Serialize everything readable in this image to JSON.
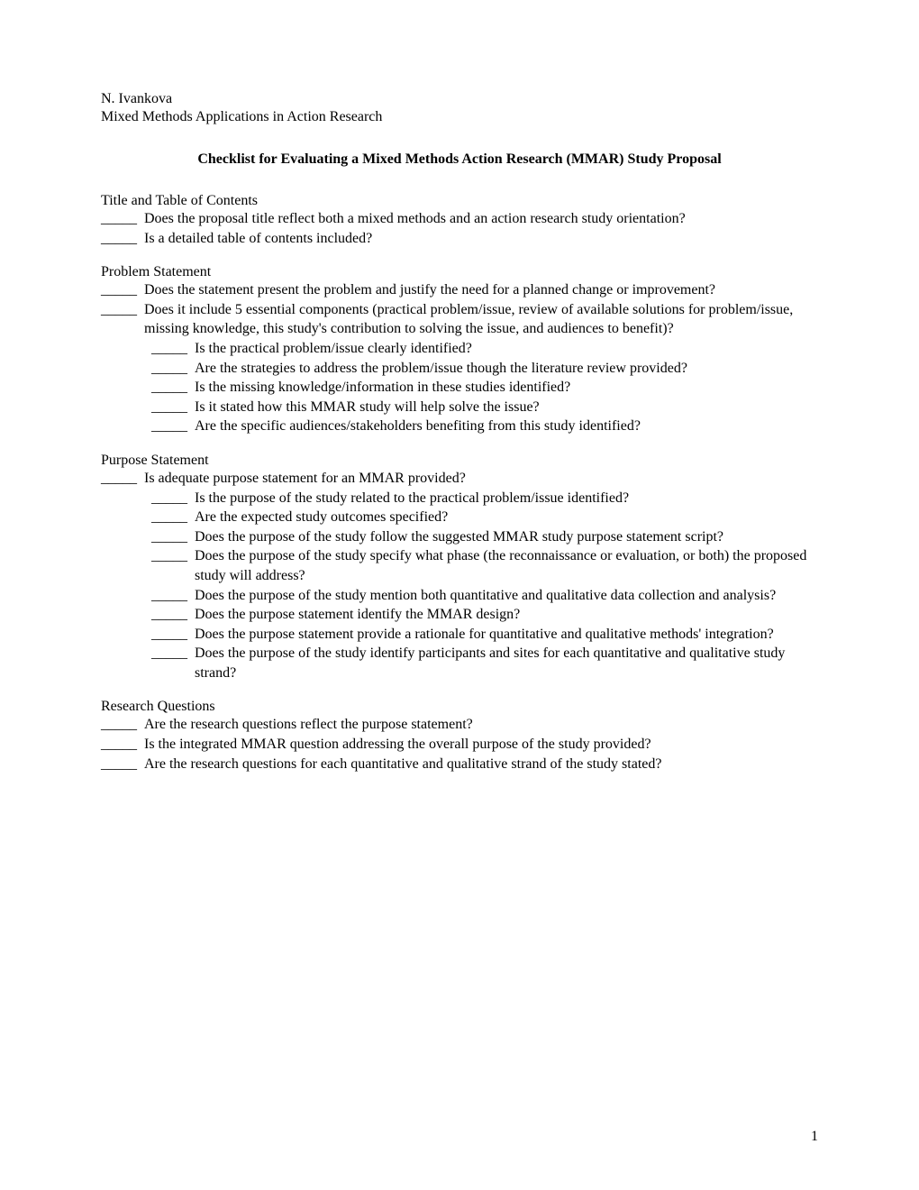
{
  "header": {
    "author": "N. Ivankova",
    "subtitle": "Mixed Methods Applications in Action Research"
  },
  "title": "Checklist for Evaluating a Mixed Methods Action Research (MMAR) Study Proposal",
  "blank_marker": "_____",
  "sections": [
    {
      "heading": "Title and Table of Contents",
      "items": [
        {
          "text": "Does the proposal title reflect both a mixed methods and an action research study orientation?",
          "indent": 0
        },
        {
          "text": "Is a detailed table of contents included?",
          "indent": 0
        }
      ]
    },
    {
      "heading": "Problem Statement",
      "items": [
        {
          "text": "Does the statement present the problem and justify the need for a planned change or improvement?",
          "indent": 0
        },
        {
          "text": "Does it include 5 essential components (practical problem/issue, review of available solutions for problem/issue, missing knowledge, this study's contribution to solving the issue, and audiences to benefit)?",
          "indent": 0
        },
        {
          "text": "Is the practical problem/issue clearly identified?",
          "indent": 1
        },
        {
          "text": "Are the strategies to address the problem/issue though the literature review provided?",
          "indent": 1
        },
        {
          "text": "Is the missing knowledge/information in these studies identified?",
          "indent": 1
        },
        {
          "text": "Is it stated how this MMAR study will help solve the issue?",
          "indent": 1
        },
        {
          "text": "Are the specific audiences/stakeholders benefiting from this study identified?",
          "indent": 1
        }
      ]
    },
    {
      "heading": "Purpose Statement",
      "items": [
        {
          "text": "Is adequate purpose statement for an MMAR provided?",
          "indent": 0
        },
        {
          "text": "Is the purpose of the study related to the practical problem/issue identified?",
          "indent": 1
        },
        {
          "text": "Are the expected study outcomes specified?",
          "indent": 1
        },
        {
          "text": "Does the purpose of the study follow the suggested MMAR study purpose statement script?",
          "indent": 1
        },
        {
          "text": "Does the purpose of the study specify what phase (the reconnaissance or evaluation, or both) the proposed study will address?",
          "indent": 1
        },
        {
          "text": "Does the purpose of the study mention both quantitative and qualitative data collection and analysis?",
          "indent": 1
        },
        {
          "text": "Does the purpose statement identify the MMAR design?",
          "indent": 1
        },
        {
          "text": "Does the purpose statement provide a rationale for quantitative and qualitative methods' integration?",
          "indent": 1
        },
        {
          "text": "Does the purpose of the study identify participants and sites for each quantitative and qualitative study strand?",
          "indent": 1
        }
      ]
    },
    {
      "heading": "Research Questions",
      "items": [
        {
          "text": "Are the research questions reflect the purpose statement?",
          "indent": 0
        },
        {
          "text": "Is the integrated MMAR question addressing the overall purpose of the study provided?",
          "indent": 0
        },
        {
          "text": "Are the research questions for each quantitative and qualitative strand of the study stated?",
          "indent": 0
        }
      ]
    }
  ],
  "page_number": "1"
}
